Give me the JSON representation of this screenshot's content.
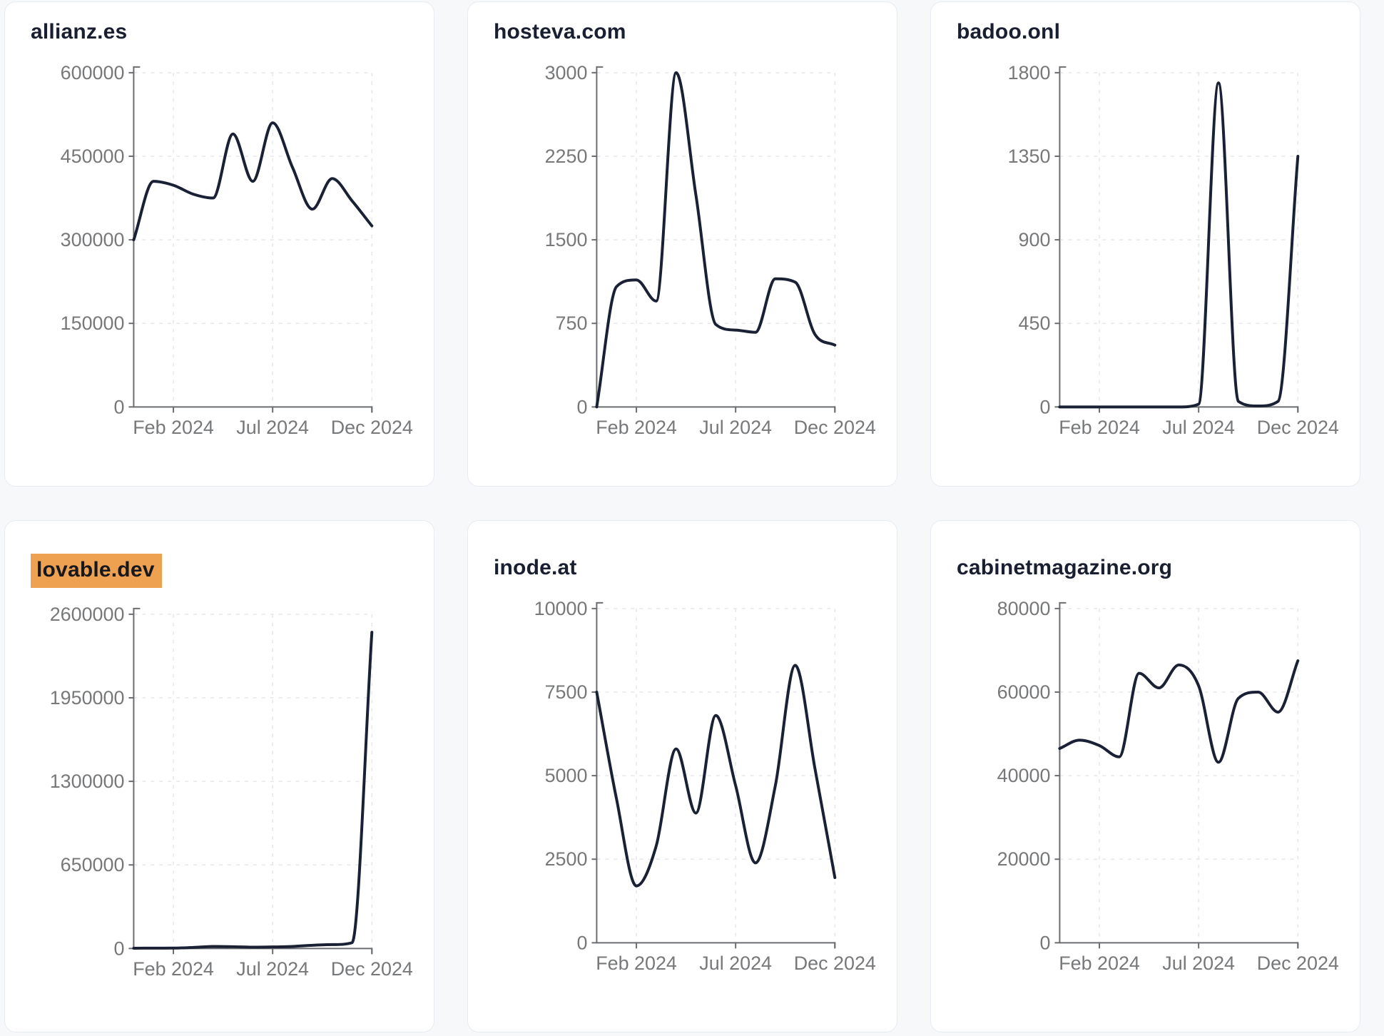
{
  "colors": {
    "page_bg": "#f7f8fa",
    "card_bg": "#ffffff",
    "card_border": "#e9ebf2",
    "title_text": "#191f31",
    "line": "#1b2134",
    "axis": "#6b6d70",
    "tick_label": "#77787a",
    "gridline": "#e7e7ea",
    "highlight_bg": "#efa152",
    "highlight_text": "#16181d"
  },
  "x_axis": {
    "tick_labels": [
      "Feb 2024",
      "Jul 2024",
      "Dec 2024"
    ]
  },
  "chart_data": [
    {
      "type": "line",
      "title": "allianz.es",
      "title_highlighted": false,
      "x": [
        "Dec 2023",
        "Jan 2024",
        "Feb 2024",
        "Mar 2024",
        "Apr 2024",
        "May 2024",
        "Jun 2024",
        "Jul 2024",
        "Aug 2024",
        "Sep 2024",
        "Oct 2024",
        "Nov 2024",
        "Dec 2024"
      ],
      "values": [
        300000,
        405000,
        398000,
        382000,
        375000,
        490000,
        405000,
        510000,
        430000,
        355000,
        410000,
        370000,
        325000
      ],
      "y_ticks": [
        0,
        150000,
        300000,
        450000,
        600000
      ],
      "ylim": [
        0,
        600000
      ],
      "x_tick_labels": [
        "Feb 2024",
        "Jul 2024",
        "Dec 2024"
      ],
      "x_tick_indices": [
        2,
        7,
        12
      ],
      "grid": true,
      "legend": false
    },
    {
      "type": "line",
      "title": "hosteva.com",
      "title_highlighted": false,
      "x": [
        "Dec 2023",
        "Jan 2024",
        "Feb 2024",
        "Mar 2024",
        "Apr 2024",
        "May 2024",
        "Jun 2024",
        "Jul 2024",
        "Aug 2024",
        "Sep 2024",
        "Oct 2024",
        "Nov 2024",
        "Dec 2024"
      ],
      "values": [
        0,
        1080,
        1140,
        950,
        3000,
        1900,
        740,
        690,
        670,
        1150,
        1120,
        650,
        555
      ],
      "y_ticks": [
        0,
        750,
        1500,
        2250,
        3000
      ],
      "ylim": [
        0,
        3000
      ],
      "x_tick_labels": [
        "Feb 2024",
        "Jul 2024",
        "Dec 2024"
      ],
      "x_tick_indices": [
        2,
        7,
        12
      ],
      "grid": true,
      "legend": false
    },
    {
      "type": "line",
      "title": "badoo.onl",
      "title_highlighted": false,
      "x": [
        "Dec 2023",
        "Jan 2024",
        "Feb 2024",
        "Mar 2024",
        "Apr 2024",
        "May 2024",
        "Jun 2024",
        "Jul 2024",
        "Aug 2024",
        "Sep 2024",
        "Oct 2024",
        "Nov 2024",
        "Dec 2024"
      ],
      "values": [
        0,
        0,
        0,
        0,
        0,
        0,
        0,
        15,
        1745,
        30,
        5,
        30,
        1350
      ],
      "y_ticks": [
        0,
        450,
        900,
        1350,
        1800
      ],
      "ylim": [
        0,
        1800
      ],
      "x_tick_labels": [
        "Feb 2024",
        "Jul 2024",
        "Dec 2024"
      ],
      "x_tick_indices": [
        2,
        7,
        12
      ],
      "grid": true,
      "legend": false
    },
    {
      "type": "line",
      "title": "lovable.dev",
      "title_highlighted": true,
      "x": [
        "Dec 2023",
        "Jan 2024",
        "Feb 2024",
        "Mar 2024",
        "Apr 2024",
        "May 2024",
        "Jun 2024",
        "Jul 2024",
        "Aug 2024",
        "Sep 2024",
        "Oct 2024",
        "Nov 2024",
        "Dec 2024"
      ],
      "values": [
        2000,
        2500,
        3000,
        8000,
        16000,
        14000,
        10000,
        12000,
        16000,
        25000,
        30000,
        45000,
        2460000
      ],
      "y_ticks": [
        0,
        650000,
        1300000,
        1950000,
        2600000
      ],
      "ylim": [
        0,
        2600000
      ],
      "x_tick_labels": [
        "Feb 2024",
        "Jul 2024",
        "Dec 2024"
      ],
      "x_tick_indices": [
        2,
        7,
        12
      ],
      "grid": true,
      "legend": false
    },
    {
      "type": "line",
      "title": "inode.at",
      "title_highlighted": false,
      "x": [
        "Dec 2023",
        "Jan 2024",
        "Feb 2024",
        "Mar 2024",
        "Apr 2024",
        "May 2024",
        "Jun 2024",
        "Jul 2024",
        "Aug 2024",
        "Sep 2024",
        "Oct 2024",
        "Nov 2024",
        "Dec 2024"
      ],
      "values": [
        7500,
        4300,
        1700,
        2900,
        5800,
        3880,
        6800,
        4700,
        2390,
        4700,
        8300,
        5200,
        1950
      ],
      "y_ticks": [
        0,
        2500,
        5000,
        7500,
        10000
      ],
      "ylim": [
        0,
        10000
      ],
      "x_tick_labels": [
        "Feb 2024",
        "Jul 2024",
        "Dec 2024"
      ],
      "x_tick_indices": [
        2,
        7,
        12
      ],
      "grid": true,
      "legend": false
    },
    {
      "type": "line",
      "title": "cabinetmagazine.org",
      "title_highlighted": false,
      "x": [
        "Dec 2023",
        "Jan 2024",
        "Feb 2024",
        "Mar 2024",
        "Apr 2024",
        "May 2024",
        "Jun 2024",
        "Jul 2024",
        "Aug 2024",
        "Sep 2024",
        "Oct 2024",
        "Nov 2024",
        "Dec 2024"
      ],
      "values": [
        46500,
        48500,
        47200,
        44500,
        64500,
        61000,
        66500,
        61500,
        43200,
        58500,
        60000,
        55200,
        67500
      ],
      "y_ticks": [
        0,
        20000,
        40000,
        60000,
        80000
      ],
      "ylim": [
        0,
        80000
      ],
      "x_tick_labels": [
        "Feb 2024",
        "Jul 2024",
        "Dec 2024"
      ],
      "x_tick_indices": [
        2,
        7,
        12
      ],
      "grid": true,
      "legend": false
    }
  ]
}
